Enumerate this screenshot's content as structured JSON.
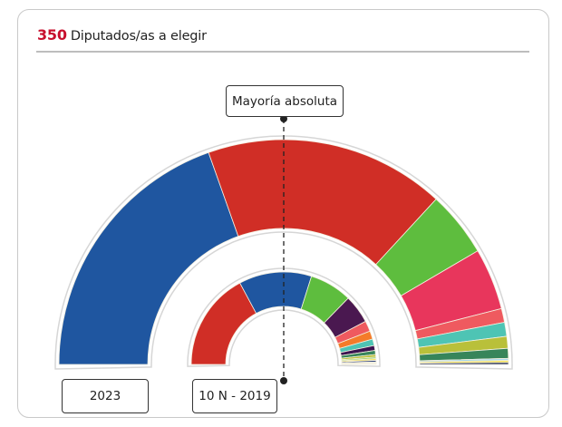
{
  "header": {
    "seats_total": "350",
    "title": "Diputados/as a elegir"
  },
  "majority_label": "Mayoría absoluta",
  "chart_data": [
    {
      "type": "pie",
      "variant": "hemicycle",
      "label": "2023",
      "total": 350,
      "values": [
        137,
        121,
        33,
        31,
        7,
        7,
        6,
        5,
        1,
        1,
        1
      ],
      "colors": [
        "#1f56a0",
        "#d02e26",
        "#5ebd3e",
        "#e8365c",
        "#ef5a5f",
        "#4ec4b4",
        "#b9c03a",
        "#37855a",
        "#a8d8ea",
        "#f4e04d",
        "#26305a"
      ]
    },
    {
      "type": "pie",
      "variant": "hemicycle",
      "label": "10 N - 2019",
      "total": 350,
      "values": [
        120,
        89,
        52,
        35,
        13,
        10,
        8,
        6,
        5,
        3,
        2,
        2,
        2,
        1,
        1,
        1
      ],
      "colors": [
        "#d02e26",
        "#1f56a0",
        "#5ebd3e",
        "#4a1850",
        "#ef5a5f",
        "#f47b2a",
        "#4ec4b4",
        "#3b1350",
        "#37855a",
        "#b9c03a",
        "#9bd26a",
        "#f4e04d",
        "#2c3e78",
        "#a8d8ea",
        "#d38b5d",
        "#8a8a3a"
      ]
    }
  ]
}
